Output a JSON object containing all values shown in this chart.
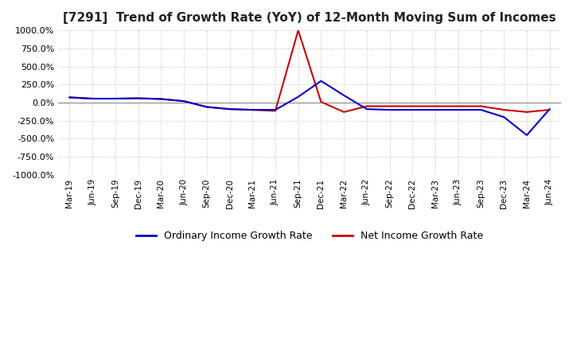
{
  "title": "[7291]  Trend of Growth Rate (YoY) of 12-Month Moving Sum of Incomes",
  "title_fontsize": 11,
  "ylim": [
    -1000,
    1000
  ],
  "yticks": [
    1000.0,
    750.0,
    500.0,
    250.0,
    0.0,
    -250.0,
    -500.0,
    -750.0,
    -1000.0
  ],
  "background_color": "#ffffff",
  "grid_color": "#bbbbbb",
  "dates": [
    "Mar-19",
    "Jun-19",
    "Sep-19",
    "Dec-19",
    "Mar-20",
    "Jun-20",
    "Sep-20",
    "Dec-20",
    "Mar-21",
    "Jun-21",
    "Sep-21",
    "Dec-21",
    "Mar-22",
    "Jun-22",
    "Sep-22",
    "Dec-22",
    "Mar-23",
    "Jun-23",
    "Sep-23",
    "Dec-23",
    "Mar-24",
    "Jun-24"
  ],
  "ordinary_income": [
    70,
    55,
    55,
    60,
    50,
    20,
    -60,
    -90,
    -100,
    -100,
    80,
    300,
    100,
    -90,
    -100,
    -100,
    -100,
    -100,
    -100,
    -200,
    -450,
    -90
  ],
  "net_income": [
    75,
    55,
    55,
    60,
    50,
    20,
    -60,
    -90,
    -100,
    -115,
    1000,
    10,
    -130,
    -50,
    -50,
    -50,
    -50,
    -50,
    -50,
    -100,
    -130,
    -100
  ],
  "ordinary_color": "#0000cc",
  "net_color": "#cc0000",
  "line_width": 1.5,
  "legend_labels": [
    "Ordinary Income Growth Rate",
    "Net Income Growth Rate"
  ]
}
